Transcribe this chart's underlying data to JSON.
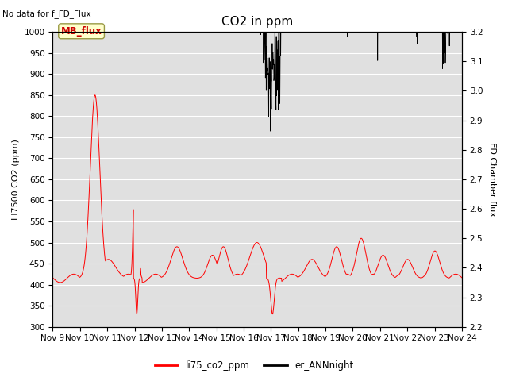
{
  "title": "CO2 in ppm",
  "no_data_text": "No data for f_FD_Flux",
  "mb_flux_label": "MB_flux",
  "ylabel_left": "LI7500 CO2 (ppm)",
  "ylabel_right": "FD Chamber flux",
  "ylim_left": [
    300,
    1000
  ],
  "ylim_right": [
    2.2,
    3.2
  ],
  "xtick_labels": [
    "Nov 9",
    "Nov 10",
    "Nov 11",
    "Nov 12",
    "Nov 13",
    "Nov 14",
    "Nov 15",
    "Nov 16",
    "Nov 17",
    "Nov 18",
    "Nov 19",
    "Nov 20",
    "Nov 21",
    "Nov 22",
    "Nov 23",
    "Nov 24"
  ],
  "legend_entries": [
    "li75_co2_ppm",
    "er_ANNnight"
  ],
  "bg_color": "#e0e0e0",
  "fig_color": "#ffffff",
  "title_fontsize": 11,
  "label_fontsize": 8,
  "tick_fontsize": 7.5
}
